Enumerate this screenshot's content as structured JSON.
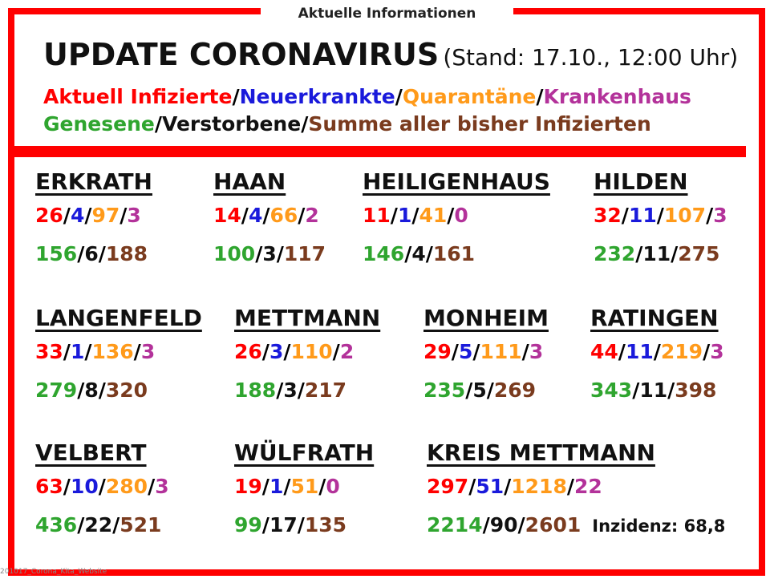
{
  "colors": {
    "aktuell": "#ff0000",
    "neu": "#1a1adb",
    "quarantaene": "#ff9a1a",
    "krankenhaus": "#b3329a",
    "genesen": "#2fa52f",
    "verstorben": "#111111",
    "summe": "#7a3b1e"
  },
  "tab": "Aktuelle Informationen",
  "title": {
    "main": "UPDATE CORONAVIRUS",
    "stand": "(Stand: 17.10., 12:00 Uhr)"
  },
  "legend": {
    "aktuell": "Aktuell Infizierte",
    "neu": "Neuerkrankte",
    "quarantaene": "Quarantäne",
    "krankenhaus": "Krankenhaus",
    "genesen": "Genesene",
    "verstorben": "Verstorbene",
    "summe": "Summe aller bisher Infizierten"
  },
  "cities": [
    {
      "name": "ERKRATH",
      "aktuell": "26",
      "neu": "4",
      "quar": "97",
      "kh": "3",
      "gen": "156",
      "tot": "6",
      "sum": "188"
    },
    {
      "name": "HAAN",
      "aktuell": "14",
      "neu": "4",
      "quar": "66",
      "kh": "2",
      "gen": "100",
      "tot": "3",
      "sum": "117"
    },
    {
      "name": "HEILIGENHAUS",
      "aktuell": "11",
      "neu": "1",
      "quar": "41",
      "kh": "0",
      "gen": "146",
      "tot": "4",
      "sum": "161"
    },
    {
      "name": "HILDEN",
      "aktuell": "32",
      "neu": "11",
      "quar": "107",
      "kh": "3",
      "gen": "232",
      "tot": "11",
      "sum": "275"
    },
    {
      "name": "LANGENFELD",
      "aktuell": "33",
      "neu": "1",
      "quar": "136",
      "kh": "3",
      "gen": "279",
      "tot": "8",
      "sum": "320"
    },
    {
      "name": "METTMANN",
      "aktuell": "26",
      "neu": "3",
      "quar": "110",
      "kh": "2",
      "gen": "188",
      "tot": "3",
      "sum": "217"
    },
    {
      "name": "MONHEIM",
      "aktuell": "29",
      "neu": "5",
      "quar": "111",
      "kh": "3",
      "gen": "235",
      "tot": "5",
      "sum": "269"
    },
    {
      "name": "RATINGEN",
      "aktuell": "44",
      "neu": "11",
      "quar": "219",
      "kh": "3",
      "gen": "343",
      "tot": "11",
      "sum": "398"
    },
    {
      "name": "VELBERT",
      "aktuell": "63",
      "neu": "10",
      "quar": "280",
      "kh": "3",
      "gen": "436",
      "tot": "22",
      "sum": "521"
    },
    {
      "name": "WÜLFRATH",
      "aktuell": "19",
      "neu": "1",
      "quar": "51",
      "kh": "0",
      "gen": "99",
      "tot": "17",
      "sum": "135"
    },
    {
      "name": "KREIS METTMANN",
      "aktuell": "297",
      "neu": "51",
      "quar": "1218",
      "kh": "22",
      "gen": "2214",
      "tot": "90",
      "sum": "2601"
    }
  ],
  "inzidenz": "Inzidenz: 68,8",
  "footer": "201017_Corona_Kita_Website"
}
